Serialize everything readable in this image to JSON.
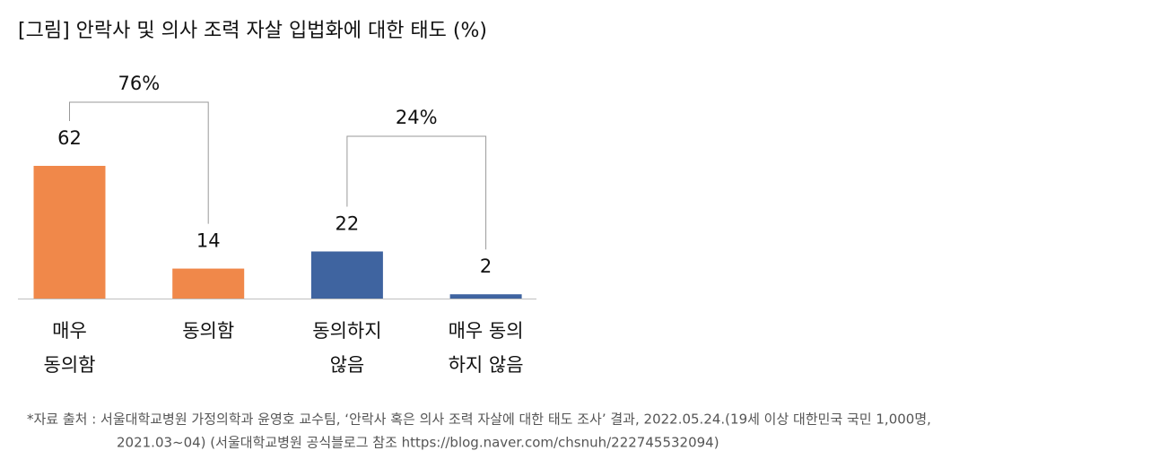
{
  "chart_data": {
    "type": "bar",
    "title": "[그림] 안락사 및 의사 조력 자살 입법화에 대한 태도 (%)",
    "categories": [
      [
        "매우",
        "동의함"
      ],
      [
        "동의함"
      ],
      [
        "동의하지",
        "않음"
      ],
      [
        "매우 동의",
        "하지 않음"
      ]
    ],
    "values": [
      62,
      14,
      22,
      2
    ],
    "colors": [
      "#f0884a",
      "#f0884a",
      "#3f64a0",
      "#3f64a0"
    ],
    "ylim": [
      0,
      62
    ],
    "annotations": [
      {
        "value": 76,
        "label": "76%"
      },
      {
        "value": 24,
        "label": "24%"
      }
    ],
    "source": [
      "*자료 출처 : 서울대학교병원 가정의학과 윤영호 교수팀, ‘안락사 혹은 의사 조력 자살에 대한 태도 조사’ 결과, 2022.05.24.(19세 이상 대한민국 국민 1,000명,",
      "2021.03~04) (서울대학교병원 공식블로그 참조 https://blog.naver.com/chsnuh/222745532094)"
    ]
  }
}
